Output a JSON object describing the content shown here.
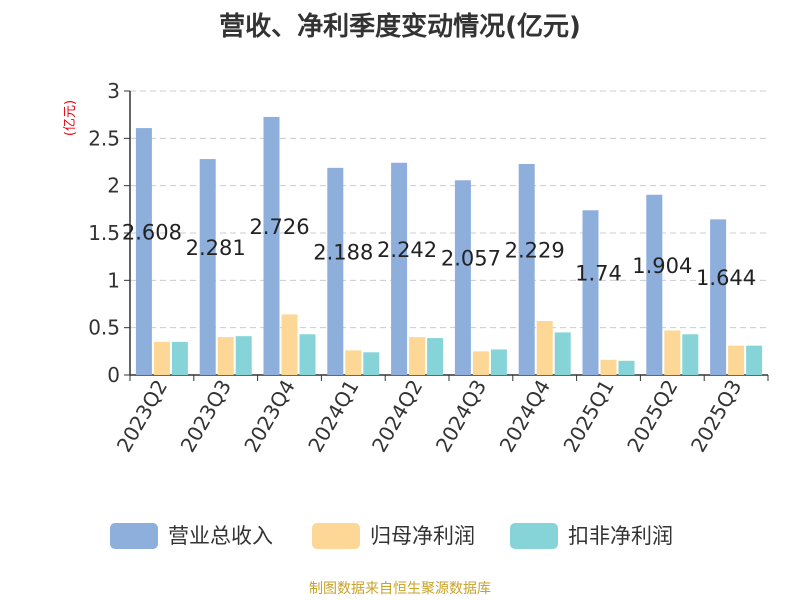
{
  "title": "营收、净利季度变动情况(亿元)",
  "source": "制图数据来自恒生聚源数据库",
  "colors": {
    "revenue": "#8eaedc",
    "net_profit": "#fdd795",
    "deducted_profit": "#86d4d8",
    "axis": "#333333",
    "grid": "#cccccc",
    "unit": "#e60012"
  },
  "chart_data": {
    "type": "bar",
    "title": "营收、净利季度变动情况(亿元)",
    "ylabel": "(亿元)",
    "ylim": [
      0,
      3
    ],
    "yticks": [
      "0",
      "0.5",
      "1",
      "1.5",
      "2",
      "2.5",
      "3"
    ],
    "grid": true,
    "legend_position": "bottom",
    "categories": [
      "2023Q2",
      "2023Q3",
      "2023Q4",
      "2024Q1",
      "2024Q2",
      "2024Q3",
      "2024Q4",
      "2025Q1",
      "2025Q2",
      "2025Q3"
    ],
    "series": [
      {
        "name": "营业总收入",
        "values": [
          2.608,
          2.281,
          2.726,
          2.188,
          2.242,
          2.057,
          2.229,
          1.74,
          1.904,
          1.644
        ],
        "labels": [
          "2.608",
          "2.281",
          "2.726",
          "2.188",
          "2.242",
          "2.057",
          "2.229",
          "1.74",
          "1.904",
          "1.644"
        ]
      },
      {
        "name": "归母净利润",
        "values": [
          0.35,
          0.4,
          0.64,
          0.26,
          0.4,
          0.25,
          0.57,
          0.16,
          0.47,
          0.31
        ]
      },
      {
        "name": "扣非净利润",
        "values": [
          0.35,
          0.41,
          0.43,
          0.24,
          0.39,
          0.27,
          0.45,
          0.15,
          0.43,
          0.31
        ]
      }
    ]
  }
}
